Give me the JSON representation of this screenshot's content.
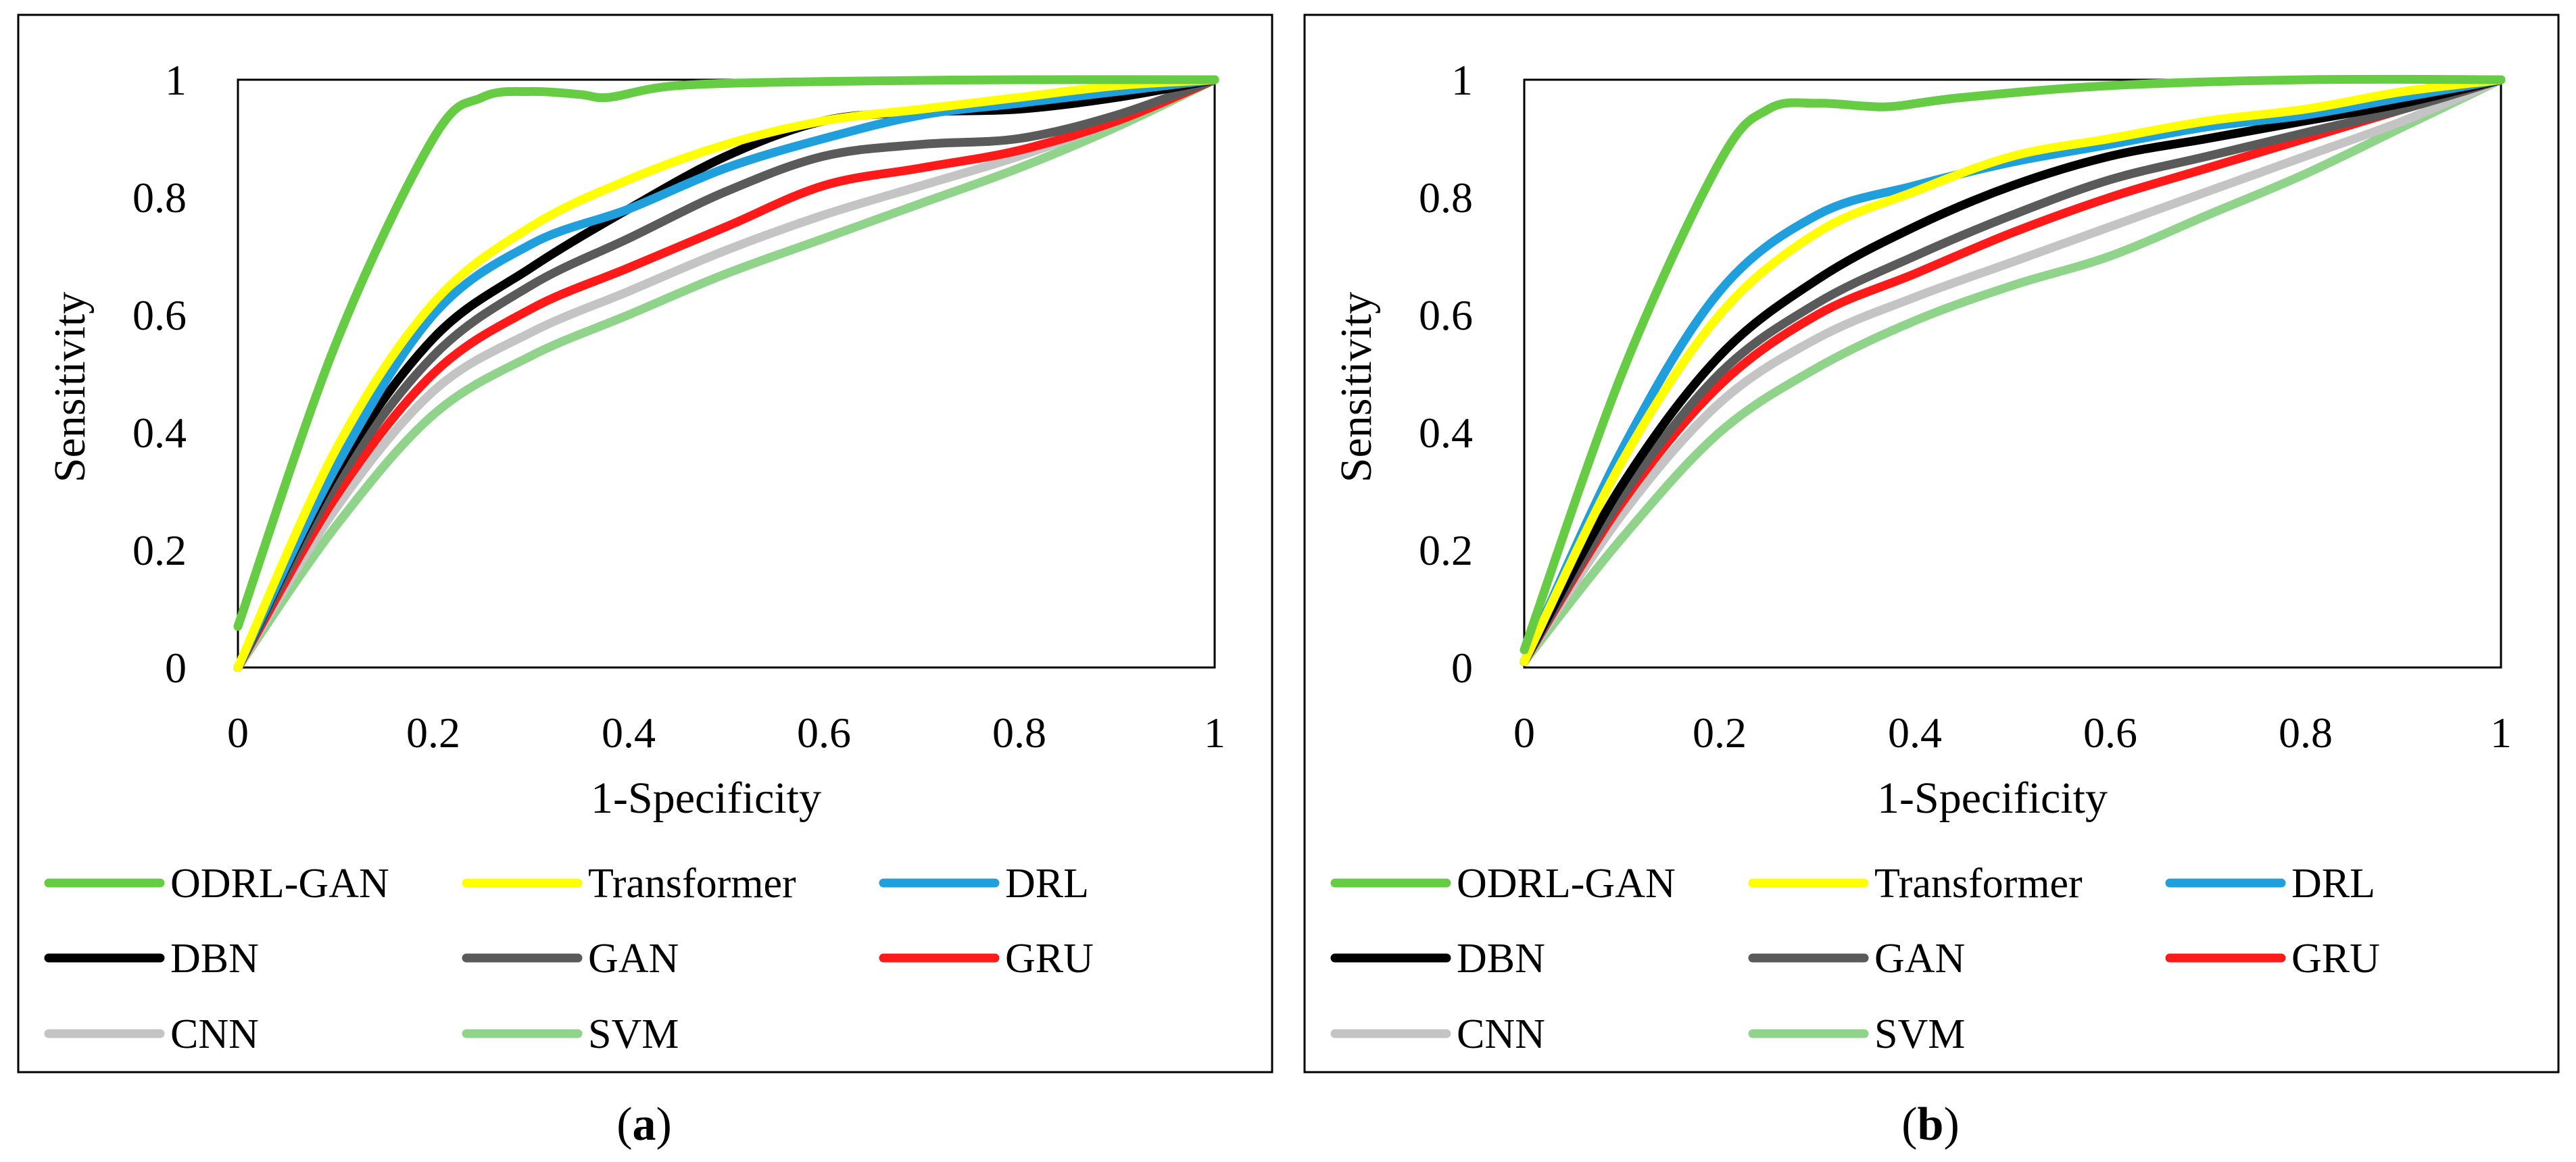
{
  "chart_data": [
    {
      "type": "line",
      "caption_letter": "a",
      "xlabel": "1-Specificity",
      "ylabel": "Sensitivity",
      "xlim": [
        0,
        1
      ],
      "ylim": [
        0,
        1
      ],
      "xticks": [
        "0",
        "0.2",
        "0.4",
        "0.6",
        "0.8",
        "1"
      ],
      "yticks": [
        "0",
        "0.2",
        "0.4",
        "0.6",
        "0.8",
        "1"
      ],
      "grid": false,
      "legend_position": "bottom",
      "series": [
        {
          "name": "ODRL-GAN",
          "color": "#66cc44",
          "x": [
            0,
            0.1,
            0.2,
            0.25,
            0.3,
            0.35,
            0.38,
            0.45,
            0.6,
            0.8,
            1
          ],
          "y": [
            0.07,
            0.55,
            0.9,
            0.97,
            0.98,
            0.975,
            0.97,
            0.99,
            0.997,
            1,
            1
          ]
        },
        {
          "name": "Transformer",
          "color": "#ffff00",
          "x": [
            0,
            0.1,
            0.2,
            0.3,
            0.4,
            0.5,
            0.6,
            0.7,
            0.8,
            0.9,
            1
          ],
          "y": [
            0,
            0.37,
            0.62,
            0.75,
            0.83,
            0.89,
            0.93,
            0.95,
            0.97,
            0.99,
            1
          ]
        },
        {
          "name": "DRL",
          "color": "#1fa0dc",
          "x": [
            0,
            0.1,
            0.2,
            0.3,
            0.4,
            0.5,
            0.6,
            0.7,
            0.8,
            0.9,
            1
          ],
          "y": [
            0,
            0.34,
            0.6,
            0.72,
            0.78,
            0.85,
            0.9,
            0.94,
            0.96,
            0.98,
            1
          ]
        },
        {
          "name": "DBN",
          "color": "#000000",
          "x": [
            0,
            0.1,
            0.2,
            0.3,
            0.4,
            0.5,
            0.6,
            0.7,
            0.8,
            0.9,
            1
          ],
          "y": [
            0,
            0.33,
            0.56,
            0.68,
            0.78,
            0.87,
            0.93,
            0.945,
            0.95,
            0.97,
            1
          ]
        },
        {
          "name": "GAN",
          "color": "#5a5a5a",
          "x": [
            0,
            0.1,
            0.2,
            0.3,
            0.4,
            0.5,
            0.6,
            0.7,
            0.8,
            0.9,
            1
          ],
          "y": [
            0,
            0.31,
            0.53,
            0.65,
            0.73,
            0.81,
            0.87,
            0.89,
            0.9,
            0.94,
            1
          ]
        },
        {
          "name": "GRU",
          "color": "#ff1a1a",
          "x": [
            0,
            0.1,
            0.2,
            0.3,
            0.4,
            0.5,
            0.6,
            0.7,
            0.8,
            0.9,
            1
          ],
          "y": [
            0,
            0.29,
            0.5,
            0.61,
            0.68,
            0.75,
            0.82,
            0.85,
            0.88,
            0.93,
            1
          ]
        },
        {
          "name": "CNN",
          "color": "#c4c4c4",
          "x": [
            0,
            0.1,
            0.2,
            0.3,
            0.4,
            0.5,
            0.6,
            0.7,
            0.8,
            0.9,
            1
          ],
          "y": [
            0,
            0.27,
            0.47,
            0.57,
            0.64,
            0.71,
            0.77,
            0.82,
            0.87,
            0.93,
            1
          ]
        },
        {
          "name": "SVM",
          "color": "#8fd48a",
          "x": [
            0,
            0.1,
            0.2,
            0.3,
            0.4,
            0.5,
            0.6,
            0.7,
            0.8,
            0.9,
            1
          ],
          "y": [
            0,
            0.24,
            0.43,
            0.53,
            0.6,
            0.67,
            0.73,
            0.79,
            0.85,
            0.92,
            1
          ]
        }
      ]
    },
    {
      "type": "line",
      "caption_letter": "b",
      "xlabel": "1-Specificity",
      "ylabel": "Sensitivity",
      "xlim": [
        0,
        1
      ],
      "ylim": [
        0,
        1
      ],
      "xticks": [
        "0",
        "0.2",
        "0.4",
        "0.6",
        "0.8",
        "1"
      ],
      "yticks": [
        "0",
        "0.2",
        "0.4",
        "0.6",
        "0.8",
        "1"
      ],
      "grid": false,
      "legend_position": "bottom",
      "series": [
        {
          "name": "ODRL-GAN",
          "color": "#66cc44",
          "x": [
            0,
            0.1,
            0.2,
            0.25,
            0.3,
            0.35,
            0.38,
            0.45,
            0.6,
            0.8,
            1
          ],
          "y": [
            0.03,
            0.5,
            0.86,
            0.95,
            0.96,
            0.955,
            0.955,
            0.97,
            0.99,
            1,
            1
          ]
        },
        {
          "name": "Transformer",
          "color": "#ffff00",
          "x": [
            0,
            0.1,
            0.2,
            0.3,
            0.4,
            0.5,
            0.6,
            0.7,
            0.8,
            0.9,
            1
          ],
          "y": [
            0.01,
            0.35,
            0.6,
            0.74,
            0.81,
            0.87,
            0.9,
            0.93,
            0.95,
            0.98,
            1
          ]
        },
        {
          "name": "DRL",
          "color": "#1fa0dc",
          "x": [
            0,
            0.1,
            0.2,
            0.3,
            0.4,
            0.5,
            0.6,
            0.7,
            0.8,
            0.9,
            1
          ],
          "y": [
            0.01,
            0.37,
            0.64,
            0.77,
            0.82,
            0.86,
            0.89,
            0.92,
            0.94,
            0.97,
            1
          ]
        },
        {
          "name": "DBN",
          "color": "#000000",
          "x": [
            0,
            0.1,
            0.2,
            0.3,
            0.4,
            0.5,
            0.6,
            0.7,
            0.8,
            0.9,
            1
          ],
          "y": [
            0.01,
            0.31,
            0.53,
            0.66,
            0.75,
            0.82,
            0.87,
            0.9,
            0.93,
            0.96,
            1
          ]
        },
        {
          "name": "GAN",
          "color": "#5a5a5a",
          "x": [
            0,
            0.1,
            0.2,
            0.3,
            0.4,
            0.5,
            0.6,
            0.7,
            0.8,
            0.9,
            1
          ],
          "y": [
            0.01,
            0.29,
            0.5,
            0.62,
            0.7,
            0.77,
            0.83,
            0.87,
            0.91,
            0.95,
            1
          ]
        },
        {
          "name": "GRU",
          "color": "#ff1a1a",
          "x": [
            0,
            0.1,
            0.2,
            0.3,
            0.4,
            0.5,
            0.6,
            0.7,
            0.8,
            0.9,
            1
          ],
          "y": [
            0.01,
            0.28,
            0.48,
            0.6,
            0.67,
            0.74,
            0.8,
            0.85,
            0.9,
            0.95,
            1
          ]
        },
        {
          "name": "CNN",
          "color": "#c4c4c4",
          "x": [
            0,
            0.1,
            0.2,
            0.3,
            0.4,
            0.5,
            0.6,
            0.7,
            0.8,
            0.9,
            1
          ],
          "y": [
            0.01,
            0.26,
            0.45,
            0.56,
            0.63,
            0.69,
            0.75,
            0.81,
            0.87,
            0.93,
            1
          ]
        },
        {
          "name": "SVM",
          "color": "#8fd48a",
          "x": [
            0,
            0.1,
            0.2,
            0.3,
            0.4,
            0.5,
            0.6,
            0.7,
            0.8,
            0.9,
            1
          ],
          "y": [
            0.01,
            0.22,
            0.4,
            0.51,
            0.59,
            0.65,
            0.7,
            0.77,
            0.84,
            0.92,
            1
          ]
        }
      ]
    }
  ]
}
